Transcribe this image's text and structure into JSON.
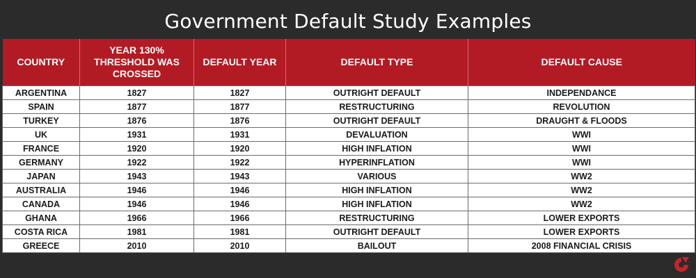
{
  "title": "Government Default Study Examples",
  "colors": {
    "background": "#2b2b2b",
    "header": "#b31b24",
    "cell": "#ffffff",
    "logo": "#c8232c"
  },
  "columns": [
    "COUNTRY",
    "YEAR 130% THRESHOLD WAS CROSSED",
    "DEFAULT YEAR",
    "DEFAULT TYPE",
    "DEFAULT CAUSE"
  ],
  "rows": [
    [
      "ARGENTINA",
      "1827",
      "1827",
      "OUTRIGHT DEFAULT",
      "INDEPENDANCE"
    ],
    [
      "SPAIN",
      "1877",
      "1877",
      "RESTRUCTURING",
      "REVOLUTION"
    ],
    [
      "TURKEY",
      "1876",
      "1876",
      "OUTRIGHT DEFAULT",
      "DRAUGHT & FLOODS"
    ],
    [
      "UK",
      "1931",
      "1931",
      "DEVALUATION",
      "WWI"
    ],
    [
      "FRANCE",
      "1920",
      "1920",
      "HIGH INFLATION",
      "WWI"
    ],
    [
      "GERMANY",
      "1922",
      "1922",
      "HYPERINFLATION",
      "WWI"
    ],
    [
      "JAPAN",
      "1943",
      "1943",
      "VARIOUS",
      "WW2"
    ],
    [
      "AUSTRALIA",
      "1946",
      "1946",
      "HIGH INFLATION",
      "WW2"
    ],
    [
      "CANADA",
      "1946",
      "1946",
      "HIGH INFLATION",
      "WW2"
    ],
    [
      "GHANA",
      "1966",
      "1966",
      "RESTRUCTURING",
      "LOWER EXPORTS"
    ],
    [
      "COSTA RICA",
      "1981",
      "1981",
      "OUTRIGHT DEFAULT",
      "LOWER EXPORTS"
    ],
    [
      "GREECE",
      "2010",
      "2010",
      "BAILOUT",
      "2008 FINANCIAL CRISIS"
    ]
  ],
  "logo": {
    "icon": "brand-logo-icon"
  }
}
